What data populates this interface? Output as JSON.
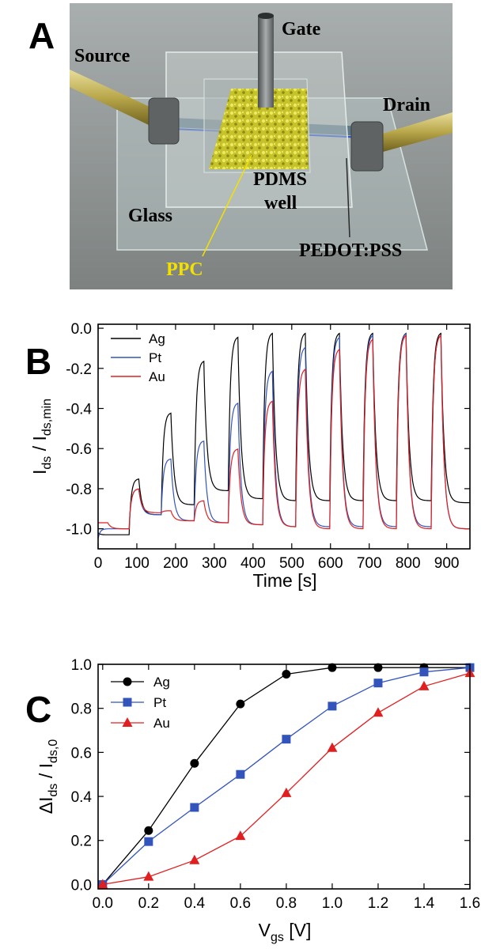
{
  "panels": {
    "a": "A",
    "b": "B",
    "c": "C"
  },
  "diagram": {
    "gate": "Gate",
    "source": "Source",
    "drain": "Drain",
    "pdms": "PDMS",
    "well": "well",
    "glass": "Glass",
    "ppc": "PPC",
    "pedot": "PEDOT:PSS"
  },
  "colors": {
    "ag": "#000000",
    "pt": "#3355bb",
    "au": "#e02020",
    "ppc_label": "#f2e100"
  },
  "chart_data": [
    {
      "type": "line",
      "xlabel_main": "Time [s]",
      "ylabel_main": "I",
      "ylabel_sub1": "ds",
      "ylabel_mid": " / I",
      "ylabel_sub2": "ds,min",
      "xlim": [
        0,
        960
      ],
      "ylim": [
        -1.1,
        0.02
      ],
      "xticks": [
        "0",
        "100",
        "200",
        "300",
        "400",
        "500",
        "600",
        "700",
        "800",
        "900"
      ],
      "xtick_values": [
        0,
        100,
        200,
        300,
        400,
        500,
        600,
        700,
        800,
        900
      ],
      "yticks": [
        "0.0",
        "-0.2",
        "-0.4",
        "-0.6",
        "-0.8",
        "-1.0"
      ],
      "ytick_values": [
        0.0,
        -0.2,
        -0.4,
        -0.6,
        -0.8,
        -1.0
      ],
      "legend_position": "top-left",
      "pulse_on_times": [
        0,
        80,
        163,
        248,
        336,
        425,
        510,
        598,
        684,
        770,
        860
      ],
      "pulse_duration": 25,
      "series": [
        {
          "name": "Ag",
          "color": "#000000",
          "start": -1.02,
          "peaks": [
            -1.03,
            -0.75,
            -0.42,
            -0.16,
            -0.04,
            -0.02,
            -0.02,
            -0.02,
            -0.02,
            -0.02,
            -0.02
          ],
          "baselines": [
            -1.03,
            -0.93,
            -0.88,
            -0.81,
            -0.85,
            -0.86,
            -0.86,
            -0.86,
            -0.86,
            -0.86,
            -0.87
          ]
        },
        {
          "name": "Pt",
          "color": "#3355bb",
          "start": -1.05,
          "peaks": [
            -1.0,
            -0.8,
            -0.65,
            -0.56,
            -0.37,
            -0.21,
            -0.09,
            -0.04,
            -0.03,
            -0.02,
            -0.03
          ],
          "baselines": [
            -1.0,
            -0.93,
            -0.96,
            -0.97,
            -0.98,
            -0.99,
            -0.99,
            -0.99,
            -0.99,
            -0.99,
            -1.0
          ]
        },
        {
          "name": "Au",
          "color": "#e02020",
          "start": -0.97,
          "peaks": [
            -0.97,
            -0.8,
            -0.91,
            -0.86,
            -0.6,
            -0.36,
            -0.2,
            -0.1,
            -0.05,
            -0.03,
            -0.03
          ],
          "baselines": [
            -1.0,
            -0.92,
            -0.96,
            -0.97,
            -0.98,
            -0.99,
            -1.0,
            -1.0,
            -1.0,
            -1.0,
            -1.0
          ]
        }
      ]
    },
    {
      "type": "line",
      "xlabel_main": "V",
      "xlabel_sub": "gs",
      "xlabel_tail": " [V]",
      "ylabel_main": "ΔI",
      "ylabel_sub1": "ds",
      "ylabel_mid": " / I",
      "ylabel_sub2": "ds,0",
      "xlim": [
        -0.02,
        1.6
      ],
      "ylim": [
        -0.02,
        1.0
      ],
      "xticks": [
        "0.0",
        "0.2",
        "0.4",
        "0.6",
        "0.8",
        "1.0",
        "1.2",
        "1.4",
        "1.6"
      ],
      "xtick_values": [
        0,
        0.2,
        0.4,
        0.6,
        0.8,
        1.0,
        1.2,
        1.4,
        1.6
      ],
      "yticks": [
        "0.0",
        "0.2",
        "0.4",
        "0.6",
        "0.8",
        "1.0"
      ],
      "ytick_values": [
        0,
        0.2,
        0.4,
        0.6,
        0.8,
        1.0
      ],
      "legend_position": "top-left",
      "x": [
        0,
        0.2,
        0.4,
        0.6,
        0.8,
        1.0,
        1.2,
        1.4,
        1.6
      ],
      "series": [
        {
          "name": "Ag",
          "color": "#000000",
          "marker": "circle",
          "values": [
            0.0,
            0.245,
            0.55,
            0.82,
            0.955,
            0.985,
            0.985,
            0.985,
            0.985
          ]
        },
        {
          "name": "Pt",
          "color": "#3355bb",
          "marker": "square",
          "values": [
            0.0,
            0.195,
            0.35,
            0.5,
            0.66,
            0.81,
            0.915,
            0.965,
            0.985
          ]
        },
        {
          "name": "Au",
          "color": "#e02020",
          "marker": "triangle",
          "values": [
            0.0,
            0.035,
            0.11,
            0.22,
            0.415,
            0.62,
            0.78,
            0.9,
            0.96
          ]
        }
      ]
    }
  ]
}
